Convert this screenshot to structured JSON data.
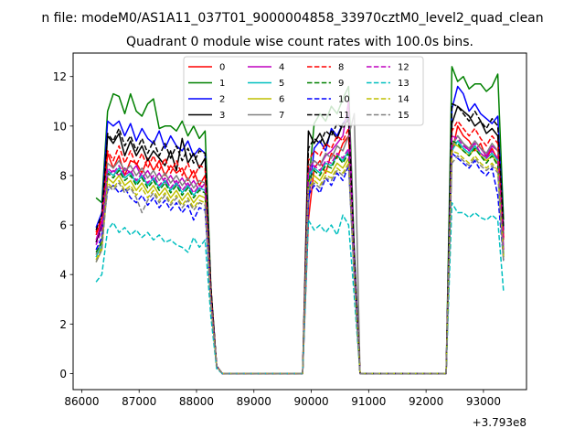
{
  "figure": {
    "suptitle": "n file: modeM0/AS1A11_037T01_9000004858_33970cztM0_level2_quad_clean",
    "offset_text": "+3.793e8"
  },
  "chart_data": {
    "type": "line",
    "title": "Quadrant 0 module wise count rates with 100.0s bins.",
    "xlabel": "",
    "ylabel": "",
    "xlim": [
      85850,
      93750
    ],
    "ylim": [
      -0.65,
      12.95
    ],
    "xticks": [
      86000,
      87000,
      88000,
      89000,
      90000,
      91000,
      92000,
      93000
    ],
    "yticks": [
      0,
      2,
      4,
      6,
      8,
      10,
      12
    ],
    "grid": false,
    "legend": {
      "position": "top-center",
      "ncol": 4
    },
    "x": [
      86250,
      86350,
      86450,
      86550,
      86650,
      86750,
      86850,
      86950,
      87050,
      87150,
      87250,
      87350,
      87450,
      87550,
      87650,
      87750,
      87850,
      87950,
      88050,
      88150,
      88250,
      88350,
      88450,
      88550,
      89850,
      89950,
      90050,
      90150,
      90250,
      90350,
      90450,
      90550,
      90650,
      90750,
      90850,
      92350,
      92450,
      92550,
      92650,
      92750,
      92850,
      92950,
      93050,
      93150,
      93250,
      93350
    ],
    "series": [
      {
        "name": "0",
        "color": "#ff0000",
        "dash": false,
        "values": [
          5.6,
          6.2,
          8.9,
          8.3,
          8.8,
          8.0,
          8.6,
          8.5,
          8.1,
          8.7,
          8.2,
          8.6,
          8.0,
          8.4,
          8.1,
          8.3,
          7.8,
          8.2,
          7.6,
          8.0,
          3.4,
          0.3,
          0,
          0,
          0,
          6.2,
          8.3,
          8.6,
          8.1,
          8.9,
          8.7,
          9.3,
          9.6,
          4.5,
          0,
          0,
          8.9,
          10.0,
          9.6,
          9.4,
          9.0,
          9.3,
          8.7,
          9.1,
          8.6,
          5.4
        ]
      },
      {
        "name": "1",
        "color": "#008000",
        "dash": false,
        "values": [
          7.1,
          6.9,
          10.6,
          11.3,
          11.2,
          10.5,
          11.3,
          10.6,
          10.4,
          10.9,
          11.1,
          9.9,
          10.0,
          10.0,
          9.8,
          10.2,
          9.6,
          10.0,
          9.5,
          9.8,
          3.5,
          0.3,
          0,
          0,
          0,
          7.5,
          10.1,
          10.5,
          10.2,
          10.8,
          10.5,
          11.1,
          11.6,
          5.0,
          0,
          0,
          12.4,
          11.8,
          12.0,
          11.5,
          11.7,
          11.7,
          11.4,
          11.6,
          12.1,
          6.2
        ]
      },
      {
        "name": "2",
        "color": "#0000ff",
        "dash": false,
        "values": [
          5.9,
          6.5,
          10.2,
          10.0,
          10.2,
          9.6,
          10.1,
          9.4,
          9.9,
          9.5,
          9.3,
          9.8,
          9.1,
          9.6,
          9.2,
          9.0,
          9.4,
          8.8,
          9.1,
          8.9,
          3.3,
          0.3,
          0,
          0,
          0,
          6.9,
          9.1,
          9.4,
          9.0,
          9.9,
          9.6,
          10.1,
          10.4,
          4.8,
          0,
          0,
          10.7,
          11.6,
          11.3,
          10.6,
          10.9,
          10.5,
          10.3,
          10.1,
          10.4,
          5.8
        ]
      },
      {
        "name": "3",
        "color": "#000000",
        "dash": false,
        "values": [
          5.3,
          6.0,
          9.6,
          9.3,
          9.7,
          8.8,
          9.4,
          8.8,
          9.2,
          8.6,
          9.0,
          8.7,
          8.4,
          9.0,
          8.2,
          9.5,
          8.5,
          8.9,
          8.3,
          8.7,
          3.3,
          0.3,
          0,
          0,
          0,
          9.8,
          9.3,
          9.7,
          9.2,
          9.8,
          9.5,
          10.1,
          10.2,
          4.6,
          0,
          0,
          10.1,
          10.8,
          10.6,
          10.4,
          10.0,
          10.2,
          9.7,
          9.9,
          9.6,
          5.5
        ]
      },
      {
        "name": "4",
        "color": "#bf00bf",
        "dash": false,
        "values": [
          5.4,
          6.1,
          8.0,
          8.2,
          8.0,
          8.3,
          8.1,
          8.4,
          7.9,
          8.2,
          7.8,
          8.1,
          7.7,
          8.0,
          7.6,
          7.9,
          7.5,
          7.8,
          7.4,
          7.7,
          3.1,
          0.3,
          0,
          0,
          0,
          8.2,
          8.6,
          8.4,
          8.8,
          9.0,
          9.3,
          9.6,
          11.0,
          4.5,
          0,
          0,
          9.2,
          9.6,
          9.3,
          9.0,
          9.4,
          9.1,
          8.8,
          9.2,
          9.0,
          5.0
        ]
      },
      {
        "name": "5",
        "color": "#00bfbf",
        "dash": false,
        "values": [
          4.7,
          5.2,
          8.2,
          8.0,
          8.3,
          7.9,
          8.1,
          7.7,
          8.0,
          7.6,
          7.9,
          7.5,
          7.8,
          7.4,
          7.7,
          7.3,
          7.6,
          7.2,
          7.5,
          7.4,
          3.0,
          0.3,
          0,
          0,
          0,
          8.0,
          8.3,
          8.1,
          8.5,
          8.4,
          8.8,
          8.6,
          9.0,
          4.2,
          0,
          0,
          9.0,
          9.4,
          9.1,
          8.9,
          9.2,
          8.9,
          8.7,
          8.9,
          8.6,
          4.9
        ]
      },
      {
        "name": "6",
        "color": "#bfbf00",
        "dash": false,
        "values": [
          4.5,
          5.0,
          7.9,
          7.7,
          8.0,
          7.6,
          7.8,
          7.4,
          7.7,
          7.3,
          7.6,
          7.2,
          7.5,
          7.1,
          7.4,
          7.0,
          7.3,
          6.9,
          7.2,
          7.1,
          2.9,
          0.3,
          0,
          0,
          0,
          7.7,
          8.0,
          7.8,
          8.2,
          8.1,
          8.5,
          8.3,
          8.7,
          4.0,
          0,
          0,
          9.3,
          9.2,
          9.0,
          8.8,
          9.1,
          8.8,
          8.6,
          8.8,
          8.5,
          4.8
        ]
      },
      {
        "name": "7",
        "color": "#808080",
        "dash": false,
        "values": [
          4.8,
          5.4,
          8.5,
          8.3,
          8.6,
          8.2,
          8.4,
          8.0,
          8.3,
          7.9,
          8.2,
          7.8,
          8.1,
          7.7,
          8.0,
          7.6,
          7.9,
          7.5,
          7.8,
          7.7,
          3.1,
          0.3,
          0,
          0,
          0,
          8.4,
          8.6,
          8.4,
          8.9,
          8.7,
          9.2,
          9.0,
          9.6,
          10.5,
          0,
          0,
          9.2,
          9.6,
          9.3,
          9.1,
          9.4,
          9.1,
          8.9,
          9.3,
          9.0,
          5.1
        ]
      },
      {
        "name": "8",
        "color": "#ff0000",
        "dash": true,
        "values": [
          5.7,
          6.3,
          9.0,
          8.6,
          9.2,
          8.5,
          9.0,
          8.4,
          8.9,
          8.3,
          8.8,
          8.2,
          8.7,
          8.1,
          8.6,
          8.0,
          8.5,
          7.9,
          8.4,
          8.3,
          3.3,
          0.3,
          0,
          0,
          0,
          8.6,
          9.0,
          8.8,
          9.3,
          9.1,
          9.6,
          9.4,
          9.9,
          4.6,
          0,
          0,
          9.8,
          10.2,
          9.9,
          9.6,
          9.9,
          9.5,
          9.2,
          9.6,
          9.3,
          5.5
        ]
      },
      {
        "name": "9",
        "color": "#008000",
        "dash": true,
        "values": [
          4.9,
          5.3,
          8.1,
          7.9,
          8.2,
          7.8,
          8.0,
          7.6,
          7.9,
          7.5,
          7.8,
          7.4,
          7.7,
          7.3,
          7.6,
          7.2,
          7.5,
          7.1,
          7.4,
          7.3,
          2.9,
          0.3,
          0,
          0,
          0,
          7.8,
          8.2,
          8.0,
          8.4,
          8.3,
          8.8,
          8.5,
          8.9,
          4.1,
          0,
          0,
          9.4,
          9.3,
          9.0,
          8.8,
          9.1,
          8.8,
          8.5,
          8.8,
          8.4,
          4.7
        ]
      },
      {
        "name": "10",
        "color": "#0000ff",
        "dash": true,
        "values": [
          5.0,
          5.5,
          7.4,
          7.6,
          7.3,
          7.5,
          7.1,
          6.9,
          7.2,
          6.8,
          7.1,
          6.7,
          7.0,
          6.6,
          6.9,
          6.5,
          6.8,
          6.2,
          6.7,
          6.6,
          2.9,
          0.3,
          0,
          0,
          0,
          7.2,
          7.6,
          7.3,
          7.9,
          7.6,
          8.1,
          7.8,
          8.4,
          3.9,
          0,
          0,
          8.9,
          8.7,
          8.5,
          8.3,
          8.6,
          8.2,
          8.0,
          8.3,
          7.2,
          4.6
        ]
      },
      {
        "name": "11",
        "color": "#000000",
        "dash": true,
        "values": [
          5.8,
          6.4,
          9.7,
          9.4,
          9.9,
          9.2,
          9.6,
          9.0,
          9.5,
          8.9,
          9.4,
          8.8,
          9.3,
          8.7,
          9.2,
          8.6,
          9.1,
          8.5,
          9.0,
          8.9,
          3.5,
          0.3,
          0,
          0,
          0,
          9.1,
          9.5,
          9.3,
          9.8,
          9.6,
          10.1,
          9.9,
          10.3,
          4.8,
          0,
          0,
          10.9,
          10.8,
          10.5,
          10.2,
          10.6,
          10.2,
          9.9,
          10.3,
          10.0,
          5.9
        ]
      },
      {
        "name": "12",
        "color": "#bf00bf",
        "dash": true,
        "values": [
          5.2,
          5.8,
          8.3,
          8.1,
          8.4,
          8.0,
          8.2,
          7.8,
          8.1,
          7.7,
          8.0,
          7.6,
          7.9,
          7.5,
          7.8,
          7.4,
          7.7,
          7.3,
          7.6,
          7.5,
          3.0,
          0.3,
          0,
          0,
          0,
          8.1,
          8.4,
          8.2,
          8.6,
          8.5,
          8.9,
          8.7,
          9.1,
          4.2,
          0,
          0,
          9.6,
          9.5,
          9.2,
          9.0,
          9.3,
          8.9,
          8.7,
          9.0,
          8.7,
          5.0
        ]
      },
      {
        "name": "13",
        "color": "#00bfbf",
        "dash": true,
        "values": [
          3.7,
          4.0,
          5.8,
          6.1,
          5.7,
          5.9,
          5.6,
          5.8,
          5.5,
          5.7,
          5.4,
          5.6,
          5.3,
          5.4,
          5.2,
          5.1,
          4.9,
          5.5,
          5.1,
          5.4,
          2.3,
          0.2,
          0,
          0,
          0,
          6.2,
          5.8,
          6.0,
          5.7,
          6.0,
          5.6,
          6.4,
          6.0,
          3.1,
          0,
          0,
          6.9,
          6.5,
          6.5,
          6.3,
          6.5,
          6.3,
          6.2,
          6.4,
          6.2,
          3.3
        ]
      },
      {
        "name": "14",
        "color": "#bfbf00",
        "dash": true,
        "values": [
          4.6,
          5.1,
          7.7,
          7.5,
          7.8,
          7.4,
          7.6,
          7.2,
          7.5,
          7.1,
          7.4,
          7.0,
          7.3,
          6.9,
          7.2,
          6.8,
          7.1,
          6.7,
          7.0,
          6.9,
          2.8,
          0.3,
          0,
          0,
          0,
          7.5,
          7.8,
          7.6,
          8.0,
          7.9,
          8.3,
          8.1,
          8.5,
          3.9,
          0,
          0,
          9.0,
          8.9,
          8.7,
          8.5,
          8.8,
          8.5,
          8.3,
          8.5,
          8.2,
          4.6
        ]
      },
      {
        "name": "15",
        "color": "#808080",
        "dash": true,
        "values": [
          4.5,
          5.0,
          7.6,
          7.4,
          7.7,
          7.3,
          7.5,
          7.1,
          6.5,
          7.0,
          7.3,
          6.9,
          7.2,
          6.8,
          7.1,
          6.7,
          7.0,
          6.6,
          6.9,
          6.8,
          2.8,
          0.3,
          0,
          0,
          0,
          7.4,
          7.7,
          7.5,
          7.9,
          7.8,
          8.2,
          8.0,
          8.4,
          3.8,
          0,
          0,
          8.5,
          8.8,
          8.6,
          8.4,
          8.7,
          8.4,
          8.2,
          8.4,
          8.1,
          4.5
        ]
      }
    ]
  }
}
